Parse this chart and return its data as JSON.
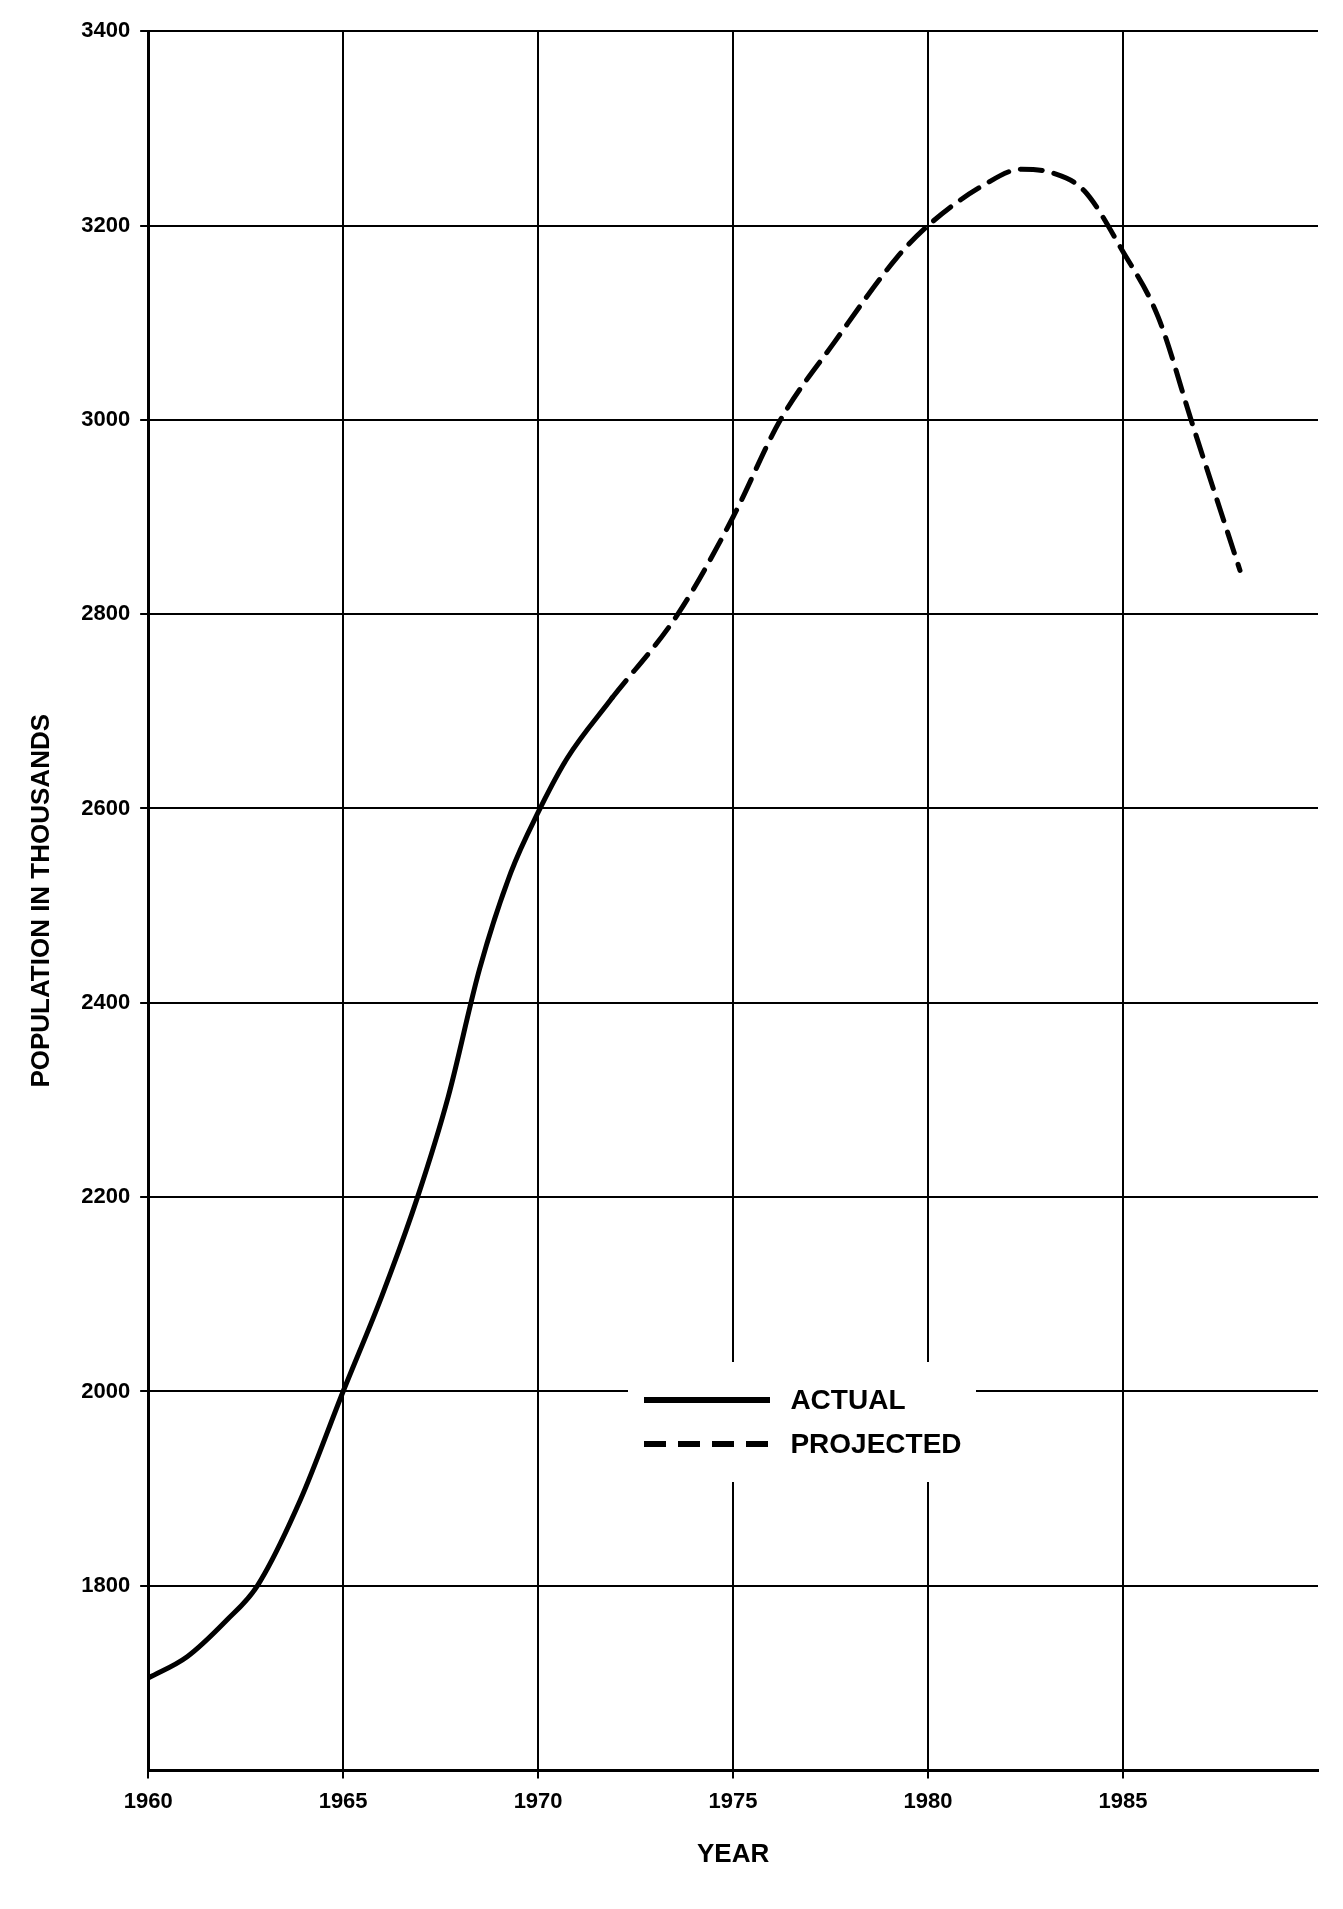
{
  "chart_data": {
    "type": "line",
    "xlabel": "YEAR",
    "ylabel": "POPULATION IN THOUSANDS",
    "xlim": [
      1960,
      1990
    ],
    "xticks": [
      1960,
      1965,
      1970,
      1975,
      1980,
      1985
    ],
    "ylim": [
      1610,
      3400
    ],
    "yticks": [
      1800,
      2000,
      2200,
      2400,
      2600,
      2800,
      3000,
      3200,
      3400
    ],
    "grid": true,
    "legend": "bottom right",
    "marker": "none",
    "series": [
      {
        "name": "ACTUAL",
        "color": "#000000",
        "line_style": "solid",
        "x": [
          1960,
          1961,
          1962,
          1962.8,
          1963.9,
          1965,
          1966,
          1966.9,
          1967.7,
          1968.5,
          1969.3,
          1970,
          1970.75,
          1971.9
        ],
        "values": [
          1705,
          1727,
          1764,
          1800,
          1888,
          2000,
          2099,
          2199,
          2304,
          2435,
          2534,
          2596,
          2652,
          2714
        ]
      },
      {
        "name": "PROJECTED",
        "color": "#000000",
        "line_style": "dashed",
        "x": [
          1971.9,
          1973.6,
          1975,
          1976.2,
          1977.6,
          1979.2,
          1980,
          1981.4,
          1982.4,
          1983.2,
          1984,
          1985,
          1985.9,
          1986.8,
          1988
        ],
        "values": [
          2714,
          2801,
          2900,
          2999,
          3080,
          3167,
          3200,
          3241,
          3258,
          3254,
          3236,
          3173,
          3106,
          2993,
          2845
        ]
      }
    ]
  }
}
